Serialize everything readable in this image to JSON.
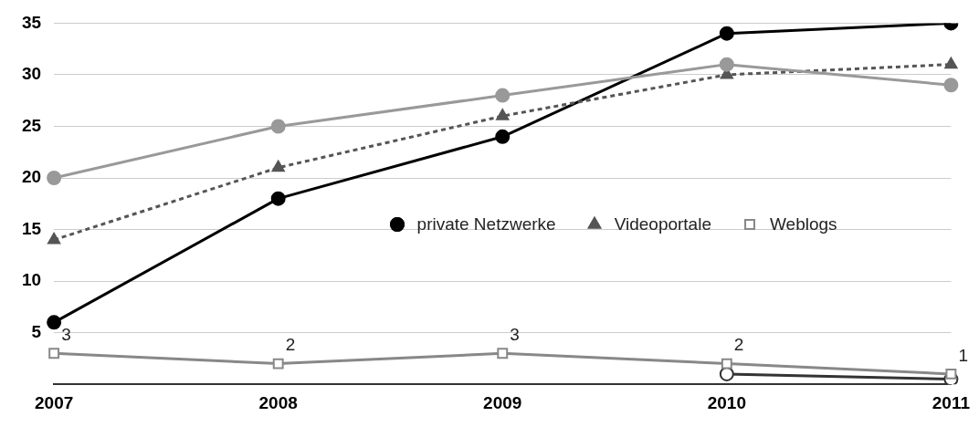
{
  "chart_data": {
    "type": "line",
    "categories": [
      "2007",
      "2008",
      "2009",
      "2010",
      "2011"
    ],
    "ylim": [
      0,
      35
    ],
    "yticks": [
      5,
      10,
      15,
      20,
      25,
      30,
      35
    ],
    "grid": "y",
    "legend": "right",
    "series": [
      {
        "name": "private Netzwerke",
        "color": "#000000",
        "marker": "circle",
        "line_style": "solid",
        "values": [
          6,
          18,
          24,
          34,
          35
        ]
      },
      {
        "name": "Videoportale",
        "color": "#555555",
        "marker": "triangle",
        "line_style": "dashed",
        "values": [
          14,
          21,
          26,
          30,
          31
        ]
      },
      {
        "color": "#999999",
        "marker": "circle",
        "line_style": "solid",
        "values": [
          20,
          25,
          28,
          31,
          29
        ]
      },
      {
        "color": "#333333",
        "marker": "circle",
        "line_style": "solid",
        "values": [
          null,
          null,
          null,
          1,
          0.5
        ]
      },
      {
        "name": "Weblogs",
        "color": "#888888",
        "marker": "square",
        "line_style": "solid",
        "values": [
          3,
          2,
          3,
          2,
          1
        ],
        "value_labels": [
          "3",
          "2",
          "3",
          "2",
          "1"
        ]
      }
    ]
  }
}
